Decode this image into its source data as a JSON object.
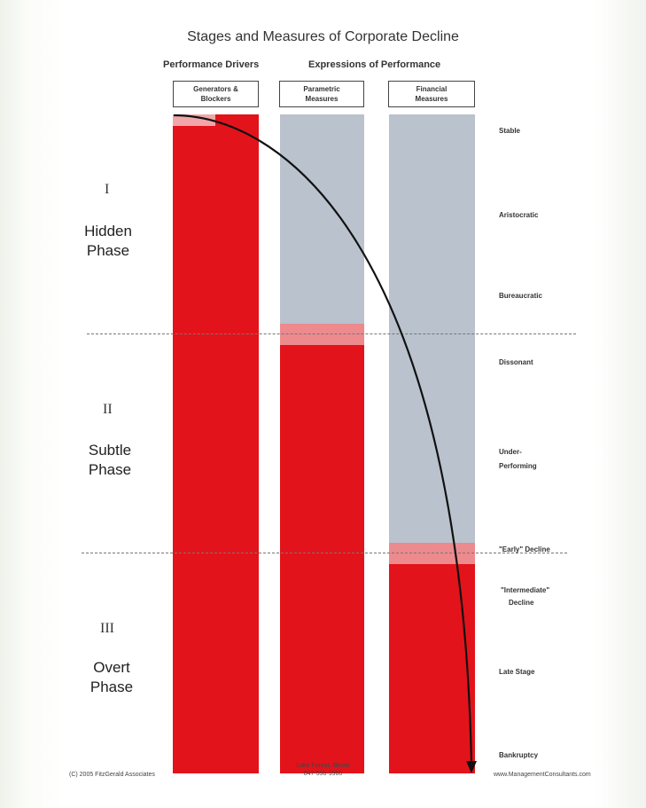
{
  "title": "Stages and Measures of Corporate Decline",
  "headers": {
    "drivers": "Performance Drivers",
    "expressions": "Expressions of Performance"
  },
  "columns": [
    {
      "line1": "Generators &",
      "line2": "Blockers"
    },
    {
      "line1": "Parametric",
      "line2": "Measures"
    },
    {
      "line1": "Financial",
      "line2": "Measures"
    }
  ],
  "phases": [
    {
      "roman": "I",
      "line1": "Hidden",
      "line2": "Phase"
    },
    {
      "roman": "II",
      "line1": "Subtle",
      "line2": "Phase"
    },
    {
      "roman": "III",
      "line1": "Overt",
      "line2": "Phase"
    }
  ],
  "stages": [
    "Stable",
    "Aristocratic",
    "Bureaucratic",
    "Dissonant",
    "Under-",
    "Performing",
    "\"Early\" Decline",
    "\"Intermediate\"",
    "Decline",
    "Late Stage",
    "Bankruptcy"
  ],
  "footer": {
    "copyright": "(C) 2005 FitzGerald Associates",
    "location": "Lake Forest, Illinois",
    "phone": "847-598-9960",
    "website": "www.ManagementConsultants.com"
  },
  "colors": {
    "decline_red": "#e3131b",
    "transition_pink": "#ec8a8e",
    "stable_grey": "#b9c2cd"
  }
}
